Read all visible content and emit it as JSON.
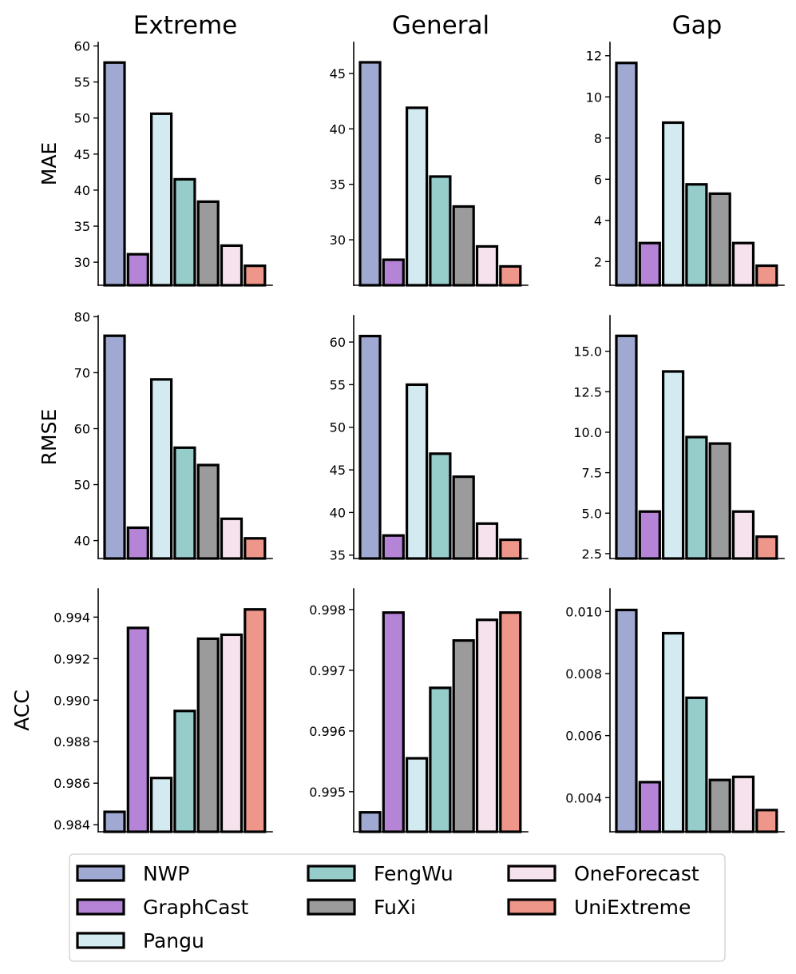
{
  "chart_data": {
    "type": "bar",
    "layout": "3x3 grid of bar charts",
    "column_titles": [
      "Extreme",
      "General",
      "Gap"
    ],
    "row_labels": [
      "MAE",
      "RMSE",
      "ACC"
    ],
    "categories": [
      "NWP",
      "GraphCast",
      "Pangu",
      "FengWu",
      "FuXi",
      "OneForecast",
      "UniExtreme"
    ],
    "colors": [
      "#a0a9d2",
      "#b584d6",
      "#d3eaf1",
      "#96cdcb",
      "#9b9b9b",
      "#f6e2ec",
      "#ee968a"
    ],
    "legend": {
      "position": "bottom",
      "entries": [
        "NWP",
        "GraphCast",
        "Pangu",
        "FengWu",
        "FuXi",
        "OneForecast",
        "UniExtreme"
      ]
    },
    "panels": [
      {
        "row": "MAE",
        "column": "Extreme",
        "values": [
          57.7,
          31.1,
          50.6,
          41.5,
          38.4,
          32.3,
          29.5
        ],
        "ylim": [
          26.8,
          60.5
        ],
        "ticks": [
          30,
          35,
          40,
          45,
          50,
          55,
          60
        ],
        "tick_labels": [
          "30",
          "35",
          "40",
          "45",
          "50",
          "55",
          "60"
        ]
      },
      {
        "row": "MAE",
        "column": "General",
        "values": [
          46.0,
          28.2,
          41.9,
          35.7,
          33.0,
          29.4,
          27.6
        ],
        "ylim": [
          25.9,
          47.8
        ],
        "ticks": [
          30,
          35,
          40,
          45
        ],
        "tick_labels": [
          "30",
          "35",
          "40",
          "45"
        ]
      },
      {
        "row": "MAE",
        "column": "Gap",
        "values": [
          11.65,
          2.9,
          8.75,
          5.75,
          5.3,
          2.9,
          1.8
        ],
        "ylim": [
          0.85,
          12.65
        ],
        "ticks": [
          2,
          4,
          6,
          8,
          10,
          12
        ],
        "tick_labels": [
          "2",
          "4",
          "6",
          "8",
          "10",
          "12"
        ]
      },
      {
        "row": "RMSE",
        "column": "Extreme",
        "values": [
          76.6,
          42.3,
          68.8,
          56.6,
          53.5,
          43.9,
          40.4
        ],
        "ylim": [
          36.8,
          80.2
        ],
        "ticks": [
          40,
          50,
          60,
          70,
          80
        ],
        "tick_labels": [
          "40",
          "50",
          "60",
          "70",
          "80"
        ]
      },
      {
        "row": "RMSE",
        "column": "General",
        "values": [
          60.7,
          37.3,
          55.0,
          46.9,
          44.2,
          38.7,
          36.8
        ],
        "ylim": [
          34.6,
          63.1
        ],
        "ticks": [
          35,
          40,
          45,
          50,
          55,
          60
        ],
        "tick_labels": [
          "35",
          "40",
          "45",
          "50",
          "55",
          "60"
        ]
      },
      {
        "row": "RMSE",
        "column": "Gap",
        "values": [
          15.95,
          5.1,
          13.75,
          9.7,
          9.3,
          5.1,
          3.55
        ],
        "ylim": [
          2.2,
          17.2
        ],
        "ticks": [
          2.5,
          5.0,
          7.5,
          10.0,
          12.5,
          15.0
        ],
        "tick_labels": [
          "2.5",
          "5.0",
          "7.5",
          "10.0",
          "12.5",
          "15.0"
        ]
      },
      {
        "row": "ACC",
        "column": "Extreme",
        "values": [
          0.98462,
          0.99348,
          0.98625,
          0.98948,
          0.99296,
          0.99315,
          0.99437
        ],
        "ylim": [
          0.98366,
          0.99536
        ],
        "ticks": [
          0.984,
          0.986,
          0.988,
          0.99,
          0.992,
          0.994
        ],
        "tick_labels": [
          "0.984",
          "0.986",
          "0.988",
          "0.990",
          "0.992",
          "0.994"
        ]
      },
      {
        "row": "ACC",
        "column": "General",
        "values": [
          0.99466,
          0.99795,
          0.99555,
          0.99671,
          0.99749,
          0.99783,
          0.99795
        ],
        "ylim": [
          0.99434,
          0.99834
        ],
        "ticks": [
          0.995,
          0.996,
          0.997,
          0.998
        ],
        "tick_labels": [
          "0.995",
          "0.996",
          "0.997",
          "0.998"
        ]
      },
      {
        "row": "ACC",
        "column": "Gap",
        "values": [
          0.01005,
          0.0045,
          0.0093,
          0.00722,
          0.00457,
          0.00467,
          0.0036
        ],
        "ylim": [
          0.0029,
          0.01073
        ],
        "ticks": [
          0.004,
          0.006,
          0.008,
          0.01
        ],
        "tick_labels": [
          "0.004",
          "0.006",
          "0.008",
          "0.010"
        ]
      }
    ]
  }
}
